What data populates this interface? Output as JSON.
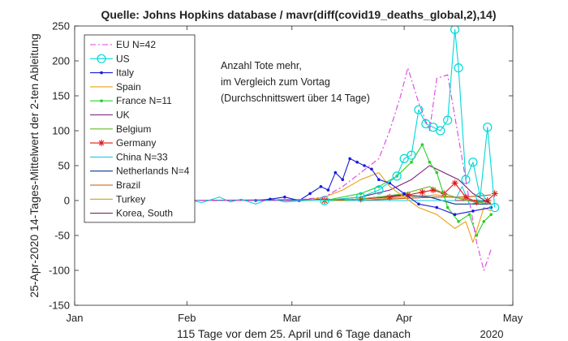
{
  "chart_data": {
    "type": "line",
    "title": "Quelle: Johns Hopkins database  /  mavr(diff(covid19_deaths_global,2),14)",
    "xlabel": "115 Tage vor dem 25. April und 6 Tage danach",
    "ylabel": "25-Apr-2020  14-Tages-Mittelwert der 2-ten Ableitung",
    "year_label": "2020",
    "xlim": [
      "2020-01-01",
      "2020-05-01"
    ],
    "ylim": [
      -150,
      250
    ],
    "x_ticks": [
      {
        "date": "2020-01-01",
        "label": "Jan"
      },
      {
        "date": "2020-02-01",
        "label": "Feb"
      },
      {
        "date": "2020-03-01",
        "label": "Mar"
      },
      {
        "date": "2020-04-01",
        "label": "Apr"
      },
      {
        "date": "2020-05-01",
        "label": "May"
      }
    ],
    "y_ticks": [
      -150,
      -100,
      -50,
      0,
      50,
      100,
      150,
      200,
      250
    ],
    "grid": false,
    "legend_position": "top-left",
    "annotation": [
      "Anzahl Tote mehr,",
      "im Vergleich zum Vortag",
      "(Durchschnittswert über 14 Tage)"
    ],
    "series": [
      {
        "name": "EU N=42",
        "color": "#e040e0",
        "style": "dashdot",
        "marker": "none",
        "points": [
          [
            "2020-01-22",
            0
          ],
          [
            "2020-03-01",
            0
          ],
          [
            "2020-03-10",
            5
          ],
          [
            "2020-03-15",
            20
          ],
          [
            "2020-03-20",
            40
          ],
          [
            "2020-03-25",
            60
          ],
          [
            "2020-03-28",
            100
          ],
          [
            "2020-03-31",
            150
          ],
          [
            "2020-04-02",
            190
          ],
          [
            "2020-04-05",
            140
          ],
          [
            "2020-04-08",
            100
          ],
          [
            "2020-04-10",
            175
          ],
          [
            "2020-04-13",
            180
          ],
          [
            "2020-04-15",
            120
          ],
          [
            "2020-04-17",
            60
          ],
          [
            "2020-04-19",
            0
          ],
          [
            "2020-04-21",
            -60
          ],
          [
            "2020-04-23",
            -100
          ],
          [
            "2020-04-25",
            -70
          ]
        ]
      },
      {
        "name": "US",
        "color": "#00d8d8",
        "style": "solid",
        "marker": "circle",
        "points": [
          [
            "2020-01-22",
            0
          ],
          [
            "2020-03-10",
            0
          ],
          [
            "2020-03-20",
            5
          ],
          [
            "2020-03-25",
            15
          ],
          [
            "2020-03-30",
            35
          ],
          [
            "2020-04-01",
            60
          ],
          [
            "2020-04-03",
            65
          ],
          [
            "2020-04-05",
            130
          ],
          [
            "2020-04-07",
            110
          ],
          [
            "2020-04-09",
            105
          ],
          [
            "2020-04-11",
            100
          ],
          [
            "2020-04-13",
            115
          ],
          [
            "2020-04-15",
            245
          ],
          [
            "2020-04-16",
            190
          ],
          [
            "2020-04-18",
            30
          ],
          [
            "2020-04-20",
            55
          ],
          [
            "2020-04-22",
            5
          ],
          [
            "2020-04-24",
            105
          ],
          [
            "2020-04-26",
            -10
          ]
        ]
      },
      {
        "name": "Italy",
        "color": "#1a1adc",
        "style": "solid",
        "marker": "dot",
        "points": [
          [
            "2020-01-22",
            0
          ],
          [
            "2020-02-20",
            0
          ],
          [
            "2020-02-24",
            2
          ],
          [
            "2020-02-28",
            5
          ],
          [
            "2020-03-03",
            0
          ],
          [
            "2020-03-06",
            10
          ],
          [
            "2020-03-09",
            20
          ],
          [
            "2020-03-11",
            15
          ],
          [
            "2020-03-13",
            40
          ],
          [
            "2020-03-15",
            30
          ],
          [
            "2020-03-17",
            60
          ],
          [
            "2020-03-19",
            55
          ],
          [
            "2020-03-21",
            50
          ],
          [
            "2020-03-23",
            45
          ],
          [
            "2020-03-25",
            30
          ],
          [
            "2020-03-28",
            25
          ],
          [
            "2020-04-01",
            10
          ],
          [
            "2020-04-05",
            -5
          ],
          [
            "2020-04-10",
            -10
          ],
          [
            "2020-04-15",
            -20
          ],
          [
            "2020-04-20",
            -15
          ],
          [
            "2020-04-25",
            -10
          ]
        ]
      },
      {
        "name": "Spain",
        "color": "#e8a317",
        "style": "solid",
        "marker": "none",
        "points": [
          [
            "2020-01-22",
            0
          ],
          [
            "2020-03-05",
            0
          ],
          [
            "2020-03-10",
            5
          ],
          [
            "2020-03-15",
            15
          ],
          [
            "2020-03-20",
            30
          ],
          [
            "2020-03-25",
            40
          ],
          [
            "2020-03-28",
            20
          ],
          [
            "2020-04-01",
            5
          ],
          [
            "2020-04-05",
            -10
          ],
          [
            "2020-04-10",
            -20
          ],
          [
            "2020-04-15",
            -40
          ],
          [
            "2020-04-18",
            -30
          ],
          [
            "2020-04-20",
            -60
          ],
          [
            "2020-04-23",
            -10
          ],
          [
            "2020-04-25",
            -15
          ]
        ]
      },
      {
        "name": "France N=11",
        "color": "#26d126",
        "style": "solid",
        "marker": "dot",
        "points": [
          [
            "2020-01-22",
            0
          ],
          [
            "2020-03-10",
            0
          ],
          [
            "2020-03-20",
            10
          ],
          [
            "2020-03-25",
            20
          ],
          [
            "2020-03-30",
            35
          ],
          [
            "2020-04-03",
            55
          ],
          [
            "2020-04-06",
            80
          ],
          [
            "2020-04-08",
            55
          ],
          [
            "2020-04-10",
            40
          ],
          [
            "2020-04-13",
            -10
          ],
          [
            "2020-04-16",
            -30
          ],
          [
            "2020-04-19",
            -20
          ],
          [
            "2020-04-21",
            -50
          ],
          [
            "2020-04-23",
            -30
          ],
          [
            "2020-04-25",
            -20
          ]
        ]
      },
      {
        "name": "UK",
        "color": "#7a1f7a",
        "style": "solid",
        "marker": "none",
        "points": [
          [
            "2020-01-22",
            0
          ],
          [
            "2020-03-10",
            0
          ],
          [
            "2020-03-20",
            5
          ],
          [
            "2020-03-28",
            15
          ],
          [
            "2020-04-03",
            30
          ],
          [
            "2020-04-08",
            50
          ],
          [
            "2020-04-12",
            40
          ],
          [
            "2020-04-16",
            30
          ],
          [
            "2020-04-20",
            10
          ],
          [
            "2020-04-25",
            -5
          ]
        ]
      },
      {
        "name": "Belgium",
        "color": "#6ab82a",
        "style": "solid",
        "marker": "none",
        "points": [
          [
            "2020-01-22",
            0
          ],
          [
            "2020-03-15",
            0
          ],
          [
            "2020-03-25",
            5
          ],
          [
            "2020-04-01",
            10
          ],
          [
            "2020-04-08",
            20
          ],
          [
            "2020-04-12",
            10
          ],
          [
            "2020-04-18",
            0
          ],
          [
            "2020-04-25",
            -5
          ]
        ]
      },
      {
        "name": "Germany",
        "color": "#e01818",
        "style": "solid",
        "marker": "star",
        "points": [
          [
            "2020-01-22",
            0
          ],
          [
            "2020-03-10",
            0
          ],
          [
            "2020-03-20",
            2
          ],
          [
            "2020-03-28",
            5
          ],
          [
            "2020-04-02",
            8
          ],
          [
            "2020-04-06",
            12
          ],
          [
            "2020-04-09",
            15
          ],
          [
            "2020-04-12",
            10
          ],
          [
            "2020-04-15",
            25
          ],
          [
            "2020-04-18",
            5
          ],
          [
            "2020-04-21",
            -2
          ],
          [
            "2020-04-24",
            0
          ],
          [
            "2020-04-26",
            10
          ]
        ]
      },
      {
        "name": "China N=33",
        "color": "#22c8e8",
        "style": "solid",
        "marker": "none",
        "points": [
          [
            "2020-01-22",
            0
          ],
          [
            "2020-02-01",
            2
          ],
          [
            "2020-02-05",
            -3
          ],
          [
            "2020-02-10",
            5
          ],
          [
            "2020-02-13",
            -2
          ],
          [
            "2020-02-16",
            2
          ],
          [
            "2020-02-20",
            -5
          ],
          [
            "2020-02-24",
            3
          ],
          [
            "2020-02-28",
            -2
          ],
          [
            "2020-03-05",
            0
          ],
          [
            "2020-04-15",
            0
          ],
          [
            "2020-04-17",
            20
          ],
          [
            "2020-04-19",
            -5
          ],
          [
            "2020-04-25",
            0
          ]
        ]
      },
      {
        "name": "Netherlands N=4",
        "color": "#003a8a",
        "style": "solid",
        "marker": "none",
        "points": [
          [
            "2020-01-22",
            0
          ],
          [
            "2020-03-15",
            0
          ],
          [
            "2020-03-25",
            5
          ],
          [
            "2020-04-01",
            8
          ],
          [
            "2020-04-08",
            5
          ],
          [
            "2020-04-15",
            -5
          ],
          [
            "2020-04-25",
            -5
          ]
        ]
      },
      {
        "name": "Brazil",
        "color": "#c05a10",
        "style": "solid",
        "marker": "none",
        "points": [
          [
            "2020-01-22",
            0
          ],
          [
            "2020-03-20",
            0
          ],
          [
            "2020-04-01",
            3
          ],
          [
            "2020-04-10",
            5
          ],
          [
            "2020-04-18",
            5
          ],
          [
            "2020-04-25",
            8
          ]
        ]
      },
      {
        "name": "Turkey",
        "color": "#c8a020",
        "style": "solid",
        "marker": "none",
        "points": [
          [
            "2020-01-22",
            0
          ],
          [
            "2020-03-20",
            0
          ],
          [
            "2020-04-01",
            5
          ],
          [
            "2020-04-10",
            8
          ],
          [
            "2020-04-18",
            2
          ],
          [
            "2020-04-25",
            -3
          ]
        ]
      },
      {
        "name": "Korea, South",
        "color": "#7b2a5a",
        "style": "solid",
        "marker": "none",
        "points": [
          [
            "2020-01-22",
            0
          ],
          [
            "2020-03-01",
            1
          ],
          [
            "2020-03-10",
            2
          ],
          [
            "2020-03-20",
            0
          ],
          [
            "2020-04-25",
            0
          ]
        ]
      }
    ]
  }
}
